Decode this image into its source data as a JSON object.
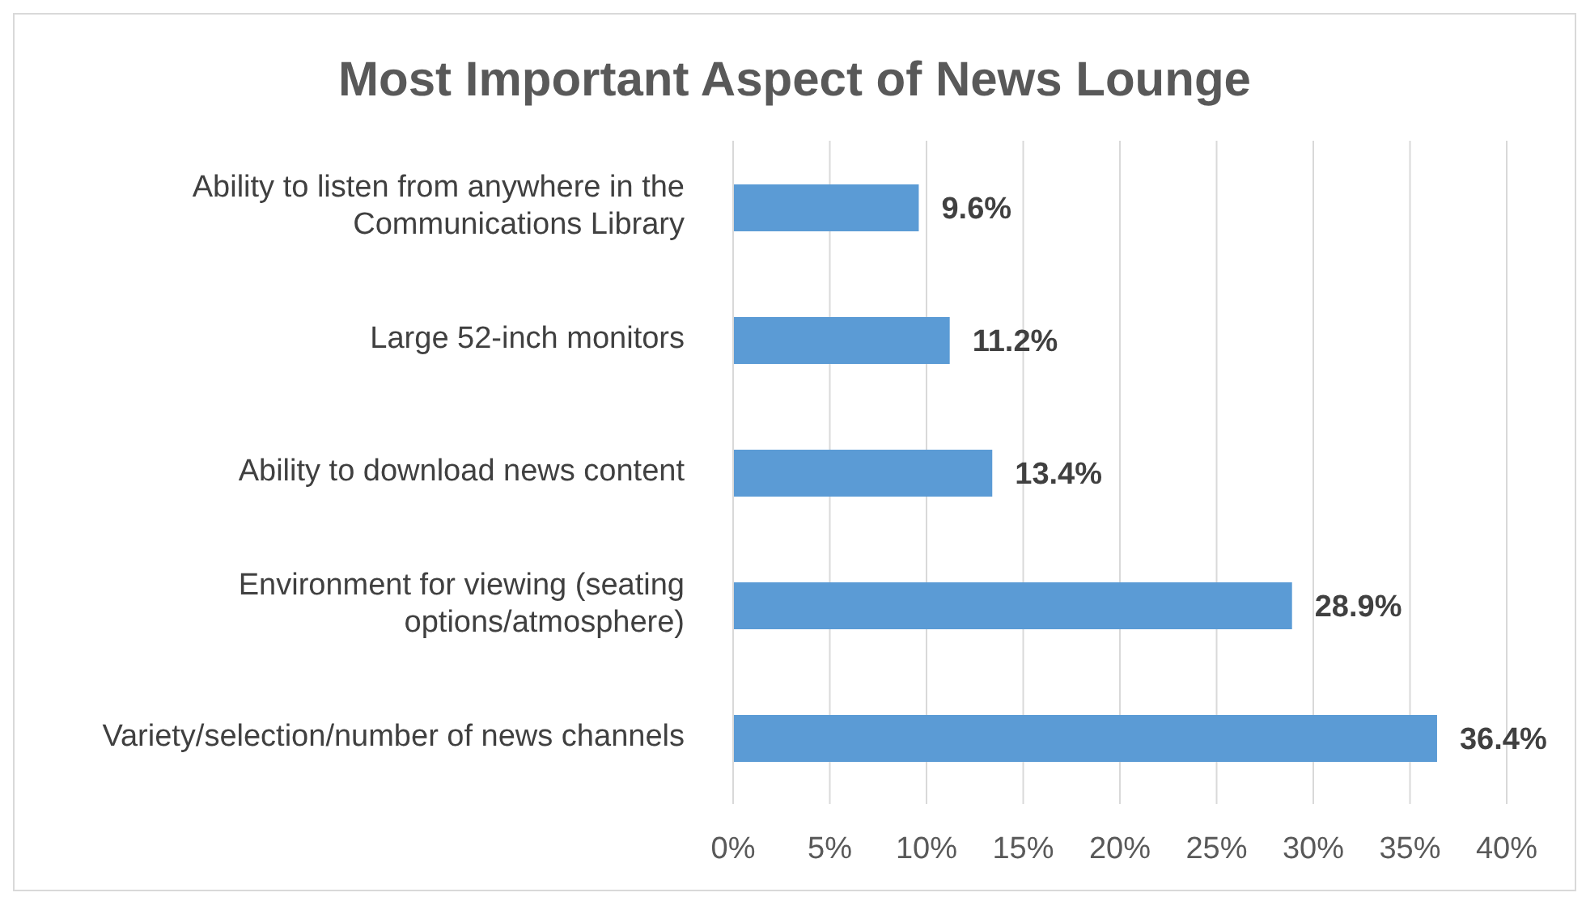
{
  "chart_data": {
    "type": "bar",
    "orientation": "horizontal",
    "title": "Most Important Aspect of News Lounge",
    "categories": [
      "Ability to listen from anywhere in the Communications Library",
      "Large 52-inch monitors",
      "Ability to download news content",
      "Environment for viewing (seating options/atmosphere)",
      "Variety/selection/number of news channels"
    ],
    "values": [
      9.6,
      11.2,
      13.4,
      28.9,
      36.4
    ],
    "value_labels": [
      "9.6%",
      "11.2%",
      "13.4%",
      "28.9%",
      "36.4%"
    ],
    "color": "#5b9bd5",
    "xlim": [
      0,
      40
    ],
    "xticks": [
      {
        "value": 0,
        "label": "0%"
      },
      {
        "value": 5,
        "label": "5%"
      },
      {
        "value": 10,
        "label": "10%"
      },
      {
        "value": 15,
        "label": "15%"
      },
      {
        "value": 20,
        "label": "20%"
      },
      {
        "value": 25,
        "label": "25%"
      },
      {
        "value": 30,
        "label": "30%"
      },
      {
        "value": 35,
        "label": "35%"
      },
      {
        "value": 40,
        "label": "40%"
      }
    ],
    "grid": "x"
  }
}
